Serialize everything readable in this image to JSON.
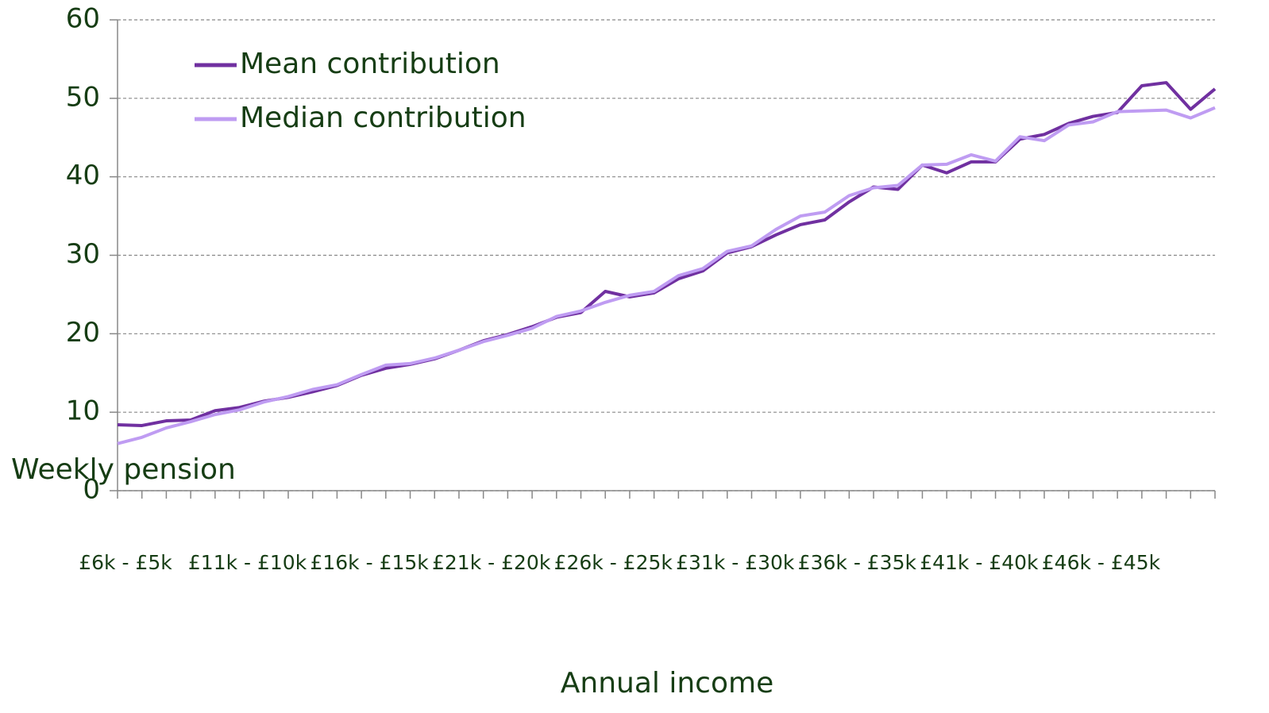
{
  "chart_data": {
    "type": "line",
    "y_label": "Weekly pension",
    "x_label": "Annual income",
    "categories": [
      "£6k - £5k",
      null,
      null,
      null,
      null,
      "£11k - £10k",
      null,
      null,
      null,
      null,
      "£16k - £15k",
      null,
      null,
      null,
      null,
      "£21k - £20k",
      null,
      null,
      null,
      null,
      "£26k - £25k",
      null,
      null,
      null,
      null,
      "£31k - £30k",
      null,
      null,
      null,
      null,
      "£36k - £35k",
      null,
      null,
      null,
      null,
      "£41k - £40k",
      null,
      null,
      null,
      null,
      "£46k - £45k",
      null,
      null,
      null,
      null,
      null
    ],
    "series": [
      {
        "name": "Mean contribution",
        "color": "#7030a0",
        "values": [
          8.4,
          8.3,
          8.9,
          9.0,
          10.2,
          10.6,
          11.4,
          11.9,
          12.6,
          13.4,
          14.7,
          15.6,
          16.1,
          16.8,
          17.9,
          19.1,
          19.9,
          20.9,
          22.1,
          22.7,
          25.4,
          24.7,
          25.2,
          27.0,
          28.0,
          30.3,
          31.1,
          32.6,
          33.9,
          34.5,
          36.8,
          38.7,
          38.4,
          41.5,
          40.5,
          41.9,
          41.9,
          44.8,
          45.4,
          46.8,
          47.7,
          48.2,
          51.6,
          52.0,
          48.6,
          51.2
        ]
      },
      {
        "name": "Median contribution",
        "color": "#bf9cf2",
        "values": [
          6.0,
          6.8,
          8.0,
          8.8,
          9.7,
          10.3,
          11.3,
          12.0,
          12.9,
          13.5,
          14.8,
          16.0,
          16.2,
          16.9,
          17.9,
          19.0,
          19.8,
          20.7,
          22.2,
          22.9,
          24.0,
          24.9,
          25.4,
          27.4,
          28.3,
          30.5,
          31.2,
          33.3,
          35.0,
          35.5,
          37.6,
          38.6,
          38.9,
          41.5,
          41.6,
          42.8,
          42.0,
          45.1,
          44.6,
          46.6,
          47.0,
          48.3,
          48.4,
          48.5,
          47.5,
          48.8
        ]
      }
    ],
    "ylim": [
      0,
      60
    ],
    "yticks": [
      0,
      10,
      20,
      30,
      40,
      50,
      60
    ],
    "grid": true,
    "legend": "top-left"
  }
}
